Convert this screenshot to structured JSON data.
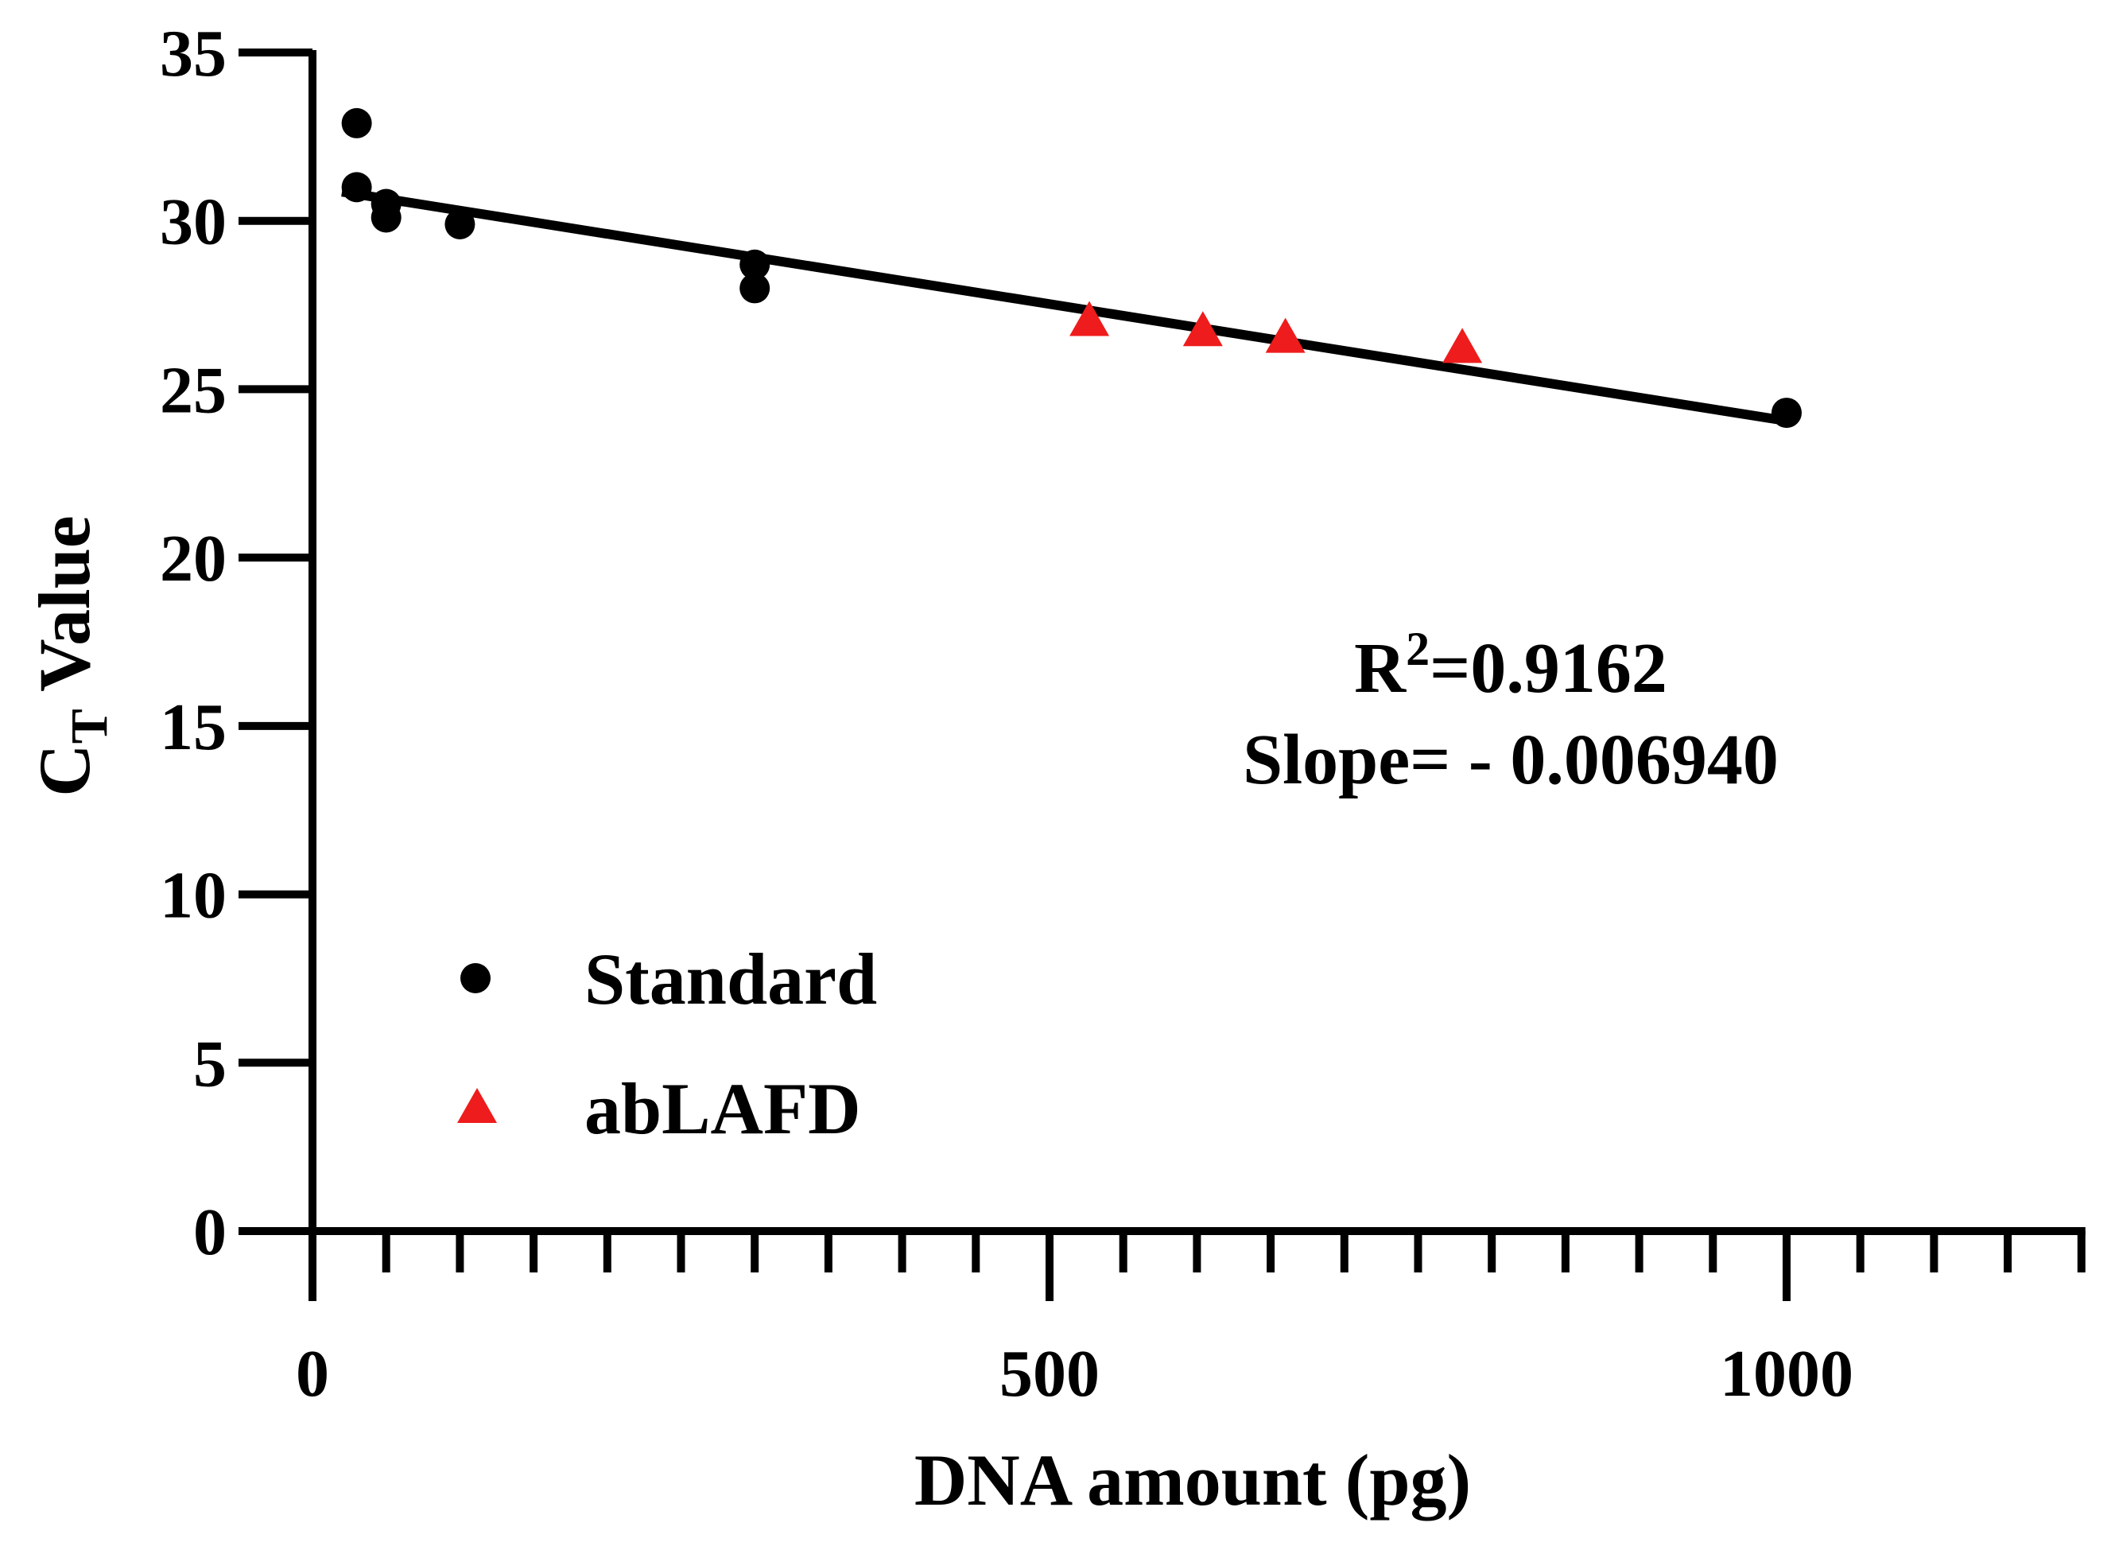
{
  "chart_data": {
    "type": "scatter",
    "xlabel": "DNA amount (pg)",
    "ylabel": {
      "base": "C",
      "subscript": "T",
      "rest": " Value"
    },
    "xlim": [
      0,
      1200
    ],
    "ylim": [
      0,
      35
    ],
    "x_major_ticks": [
      0,
      500,
      1000
    ],
    "x_minor_step": 50,
    "y_ticks": [
      0,
      5,
      10,
      15,
      20,
      25,
      30,
      35
    ],
    "grid": false,
    "legend_position": "bottom-left",
    "series": [
      {
        "name": "Standard",
        "marker": "circle",
        "color": "#000000",
        "points": [
          {
            "x": 30,
            "y": 32.9
          },
          {
            "x": 30,
            "y": 31.0
          },
          {
            "x": 50,
            "y": 30.5
          },
          {
            "x": 50,
            "y": 30.1
          },
          {
            "x": 100,
            "y": 29.9
          },
          {
            "x": 300,
            "y": 28.7
          },
          {
            "x": 300,
            "y": 28.0
          },
          {
            "x": 1000,
            "y": 24.3
          }
        ]
      },
      {
        "name": "abLAFD",
        "marker": "triangle",
        "color": "#ee1c1c",
        "points": [
          {
            "x": 527,
            "y": 27.1
          },
          {
            "x": 604,
            "y": 26.8
          },
          {
            "x": 660,
            "y": 26.6
          },
          {
            "x": 780,
            "y": 26.3
          }
        ]
      }
    ],
    "fit_line": {
      "x_start": 20,
      "x_end": 1000,
      "intercept": 31.0,
      "slope": -0.00694
    },
    "annotation": {
      "r2_prefix": "R",
      "r2_exponent": "2",
      "r2_value": "=0.9162",
      "slope_text": "Slope= - 0.006940"
    }
  }
}
